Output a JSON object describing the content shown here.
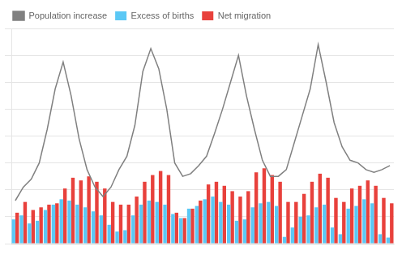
{
  "chart_data": {
    "type": "bar",
    "categories": [
      null,
      null,
      null,
      null,
      null,
      null,
      null,
      null,
      null,
      null,
      null,
      null,
      null,
      null,
      null,
      null,
      null,
      null,
      null,
      null,
      null,
      null,
      null,
      null,
      null,
      null,
      null,
      null,
      null,
      null,
      null,
      null,
      null,
      null,
      null,
      null,
      null,
      null,
      null,
      null,
      null,
      null,
      null,
      null,
      null,
      null,
      null,
      null
    ],
    "series": [
      {
        "name": "Excess of births",
        "color": "#5BC8F5",
        "values": [
          1800,
          2100,
          1500,
          1700,
          2500,
          2900,
          3300,
          3200,
          2900,
          2700,
          2400,
          2100,
          1400,
          900,
          1000,
          2100,
          2900,
          3200,
          3100,
          2900,
          2200,
          1900,
          2600,
          2800,
          3300,
          3500,
          3100,
          2900,
          1700,
          1800,
          2700,
          3000,
          3100,
          2800,
          500,
          1200,
          2000,
          2100,
          2700,
          2900,
          1200,
          700,
          2600,
          2800,
          3300,
          3000,
          700,
          450
        ]
      },
      {
        "name": "Net migration",
        "color": "#E8413C",
        "values": [
          2300,
          3100,
          2500,
          2700,
          2900,
          3000,
          4100,
          4900,
          4700,
          5000,
          4600,
          4100,
          3100,
          2900,
          2900,
          3500,
          4600,
          5100,
          5400,
          5100,
          2300,
          1900,
          2600,
          3200,
          4400,
          4600,
          4300,
          3900,
          3500,
          3900,
          5300,
          5600,
          5100,
          4600,
          3100,
          3100,
          3700,
          4600,
          5200,
          4900,
          3400,
          3100,
          4100,
          4300,
          4700,
          4300,
          3400,
          3000
        ]
      },
      {
        "name": "Population increase",
        "type": "line",
        "color": "#808080",
        "values": [
          3200,
          4200,
          4800,
          6000,
          8500,
          11500,
          13500,
          11000,
          7800,
          5500,
          4200,
          3500,
          4200,
          5500,
          6500,
          8800,
          12800,
          14500,
          13000,
          10000,
          6000,
          5000,
          5200,
          5800,
          6500,
          8200,
          10000,
          12000,
          14000,
          11000,
          8500,
          6200,
          5000,
          5000,
          5500,
          7500,
          9500,
          11500,
          14800,
          12000,
          9000,
          7200,
          6200,
          6000,
          5500,
          5300,
          5500,
          5800
        ]
      }
    ],
    "ylim": [
      0,
      16000
    ],
    "yticks": [
      0,
      2000,
      4000,
      6000,
      8000,
      10000,
      12000,
      14000,
      16000
    ],
    "grid": true,
    "legend": "upper left",
    "tick_labels": false
  }
}
